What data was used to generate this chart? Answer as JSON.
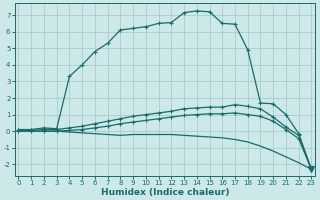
{
  "xlabel": "Humidex (Indice chaleur)",
  "background_color": "#cce8e8",
  "grid_color": "#aacccc",
  "line_color": "#1a6b6b",
  "x_ticks": [
    0,
    1,
    2,
    3,
    4,
    5,
    6,
    7,
    8,
    9,
    10,
    11,
    12,
    13,
    14,
    15,
    16,
    17,
    18,
    19,
    20,
    21,
    22,
    23
  ],
  "y_ticks": [
    -2,
    -1,
    0,
    1,
    2,
    3,
    4,
    5,
    6,
    7
  ],
  "xlim": [
    -0.3,
    23.3
  ],
  "ylim": [
    -2.7,
    7.7
  ],
  "line1_y": [
    0.1,
    0.1,
    0.2,
    0.15,
    3.3,
    4.0,
    4.8,
    5.3,
    6.1,
    6.2,
    6.3,
    6.5,
    6.55,
    7.15,
    7.25,
    7.2,
    6.5,
    6.45,
    4.9,
    1.7,
    1.65,
    1.0,
    -0.15,
    -2.3
  ],
  "line2_y": [
    0.05,
    0.05,
    0.1,
    0.1,
    0.2,
    0.3,
    0.45,
    0.6,
    0.75,
    0.9,
    1.0,
    1.1,
    1.2,
    1.35,
    1.4,
    1.45,
    1.45,
    1.6,
    1.5,
    1.35,
    0.85,
    0.25,
    -0.25,
    -2.3
  ],
  "line3_y": [
    0.0,
    0.0,
    0.0,
    0.0,
    0.05,
    0.1,
    0.2,
    0.3,
    0.45,
    0.55,
    0.65,
    0.75,
    0.85,
    0.95,
    1.0,
    1.05,
    1.05,
    1.1,
    1.0,
    0.9,
    0.6,
    0.1,
    -0.45,
    -2.3
  ],
  "line4_y": [
    0.0,
    0.0,
    0.0,
    0.0,
    -0.05,
    -0.1,
    -0.15,
    -0.2,
    -0.25,
    -0.2,
    -0.2,
    -0.2,
    -0.2,
    -0.25,
    -0.3,
    -0.35,
    -0.4,
    -0.5,
    -0.65,
    -0.9,
    -1.2,
    -1.55,
    -1.9,
    -2.3
  ]
}
